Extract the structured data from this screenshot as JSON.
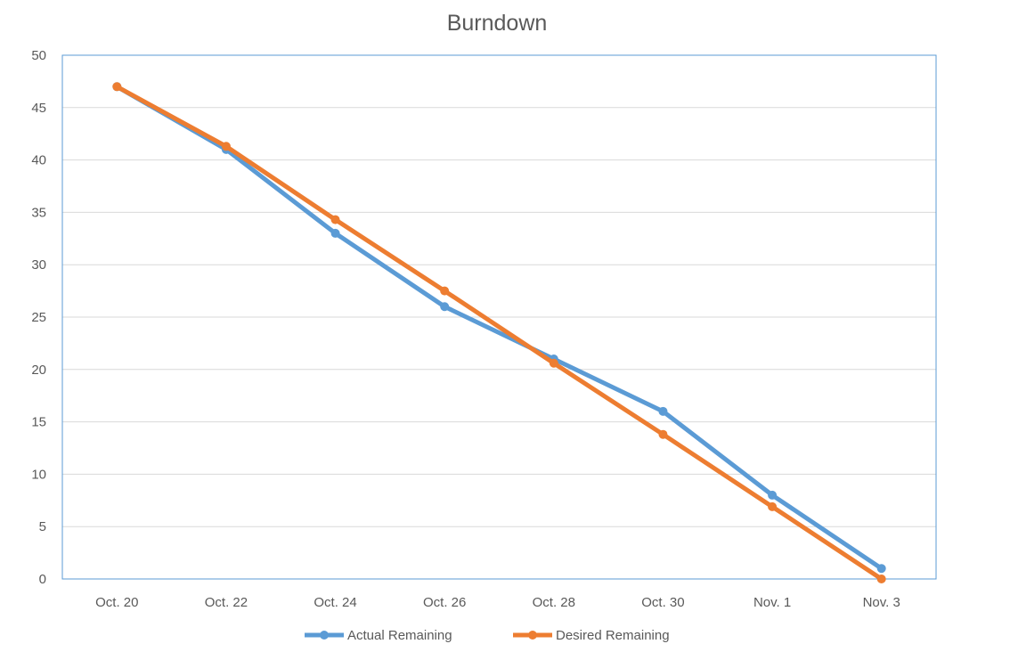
{
  "chart_data": {
    "type": "line",
    "title": "Burndown",
    "xlabel": "",
    "ylabel": "",
    "categories": [
      "Oct. 20",
      "Oct. 22",
      "Oct. 24",
      "Oct. 26",
      "Oct. 28",
      "Oct. 30",
      "Nov. 1",
      "Nov. 3"
    ],
    "ylim": [
      0,
      50
    ],
    "yticks": [
      0,
      5,
      10,
      15,
      20,
      25,
      30,
      35,
      40,
      45,
      50
    ],
    "grid": true,
    "legend_position": "bottom",
    "series": [
      {
        "name": "Actual Remaining",
        "color": "#5B9BD5",
        "values": [
          47,
          41,
          33,
          26,
          21,
          16,
          8,
          1
        ]
      },
      {
        "name": "Desired Remaining",
        "color": "#ED7D31",
        "values": [
          47,
          41.3,
          34.3,
          27.5,
          20.6,
          13.8,
          6.9,
          0
        ]
      }
    ]
  }
}
